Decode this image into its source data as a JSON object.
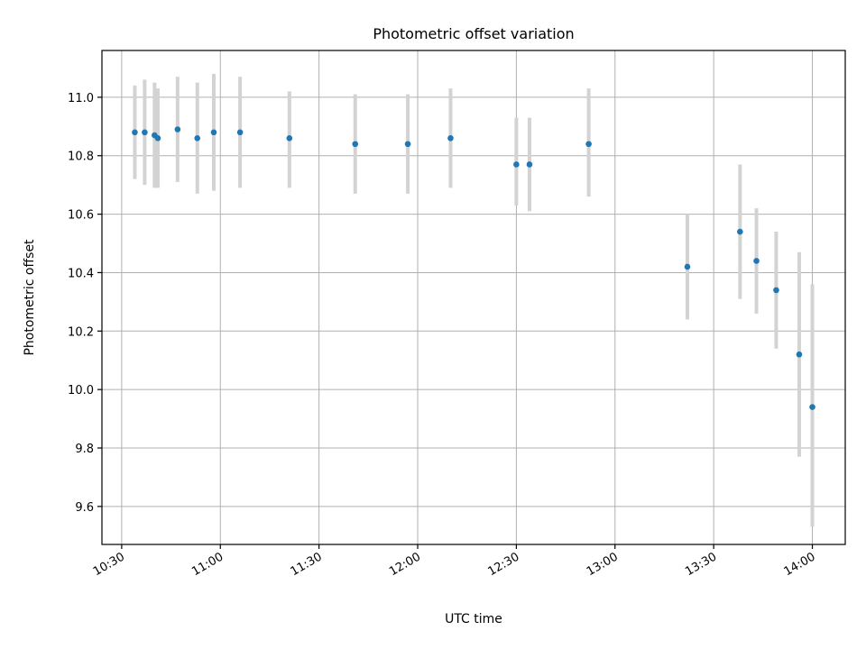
{
  "chart_data": {
    "type": "scatter",
    "title": "Photometric offset variation",
    "xlabel": "UTC time",
    "ylabel": "Photometric offset",
    "grid": true,
    "xlim": [
      "10:24",
      "14:10"
    ],
    "ylim": [
      9.47,
      11.16
    ],
    "x_ticks": [
      "10:30",
      "11:00",
      "11:30",
      "12:00",
      "12:30",
      "13:00",
      "13:30",
      "14:00"
    ],
    "y_ticks": [
      "9.6",
      "9.8",
      "10.0",
      "10.2",
      "10.4",
      "10.6",
      "10.8",
      "11.0"
    ],
    "colors": {
      "marker": "#1f77b4",
      "errorbar": "#d3d3d3",
      "grid": "#b0b0b0"
    },
    "series": [
      {
        "points": [
          {
            "x": "10:34",
            "y": 10.88,
            "ylow": 10.72,
            "yhigh": 11.04
          },
          {
            "x": "10:37",
            "y": 10.88,
            "ylow": 10.7,
            "yhigh": 11.06
          },
          {
            "x": "10:40",
            "y": 10.87,
            "ylow": 10.69,
            "yhigh": 11.05
          },
          {
            "x": "10:41",
            "y": 10.86,
            "ylow": 10.69,
            "yhigh": 11.03
          },
          {
            "x": "10:47",
            "y": 10.89,
            "ylow": 10.71,
            "yhigh": 11.07
          },
          {
            "x": "10:53",
            "y": 10.86,
            "ylow": 10.67,
            "yhigh": 11.05
          },
          {
            "x": "10:58",
            "y": 10.88,
            "ylow": 10.68,
            "yhigh": 11.08
          },
          {
            "x": "11:06",
            "y": 10.88,
            "ylow": 10.69,
            "yhigh": 11.07
          },
          {
            "x": "11:21",
            "y": 10.86,
            "ylow": 10.69,
            "yhigh": 11.02
          },
          {
            "x": "11:41",
            "y": 10.84,
            "ylow": 10.67,
            "yhigh": 11.01
          },
          {
            "x": "11:57",
            "y": 10.84,
            "ylow": 10.67,
            "yhigh": 11.01
          },
          {
            "x": "12:10",
            "y": 10.86,
            "ylow": 10.69,
            "yhigh": 11.03
          },
          {
            "x": "12:30",
            "y": 10.77,
            "ylow": 10.63,
            "yhigh": 10.93
          },
          {
            "x": "12:34",
            "y": 10.77,
            "ylow": 10.61,
            "yhigh": 10.93
          },
          {
            "x": "12:52",
            "y": 10.84,
            "ylow": 10.66,
            "yhigh": 11.03
          },
          {
            "x": "13:22",
            "y": 10.42,
            "ylow": 10.24,
            "yhigh": 10.6
          },
          {
            "x": "13:38",
            "y": 10.54,
            "ylow": 10.31,
            "yhigh": 10.77
          },
          {
            "x": "13:43",
            "y": 10.44,
            "ylow": 10.26,
            "yhigh": 10.62
          },
          {
            "x": "13:49",
            "y": 10.34,
            "ylow": 10.14,
            "yhigh": 10.54
          },
          {
            "x": "13:56",
            "y": 10.12,
            "ylow": 9.77,
            "yhigh": 10.47
          },
          {
            "x": "14:00",
            "y": 9.94,
            "ylow": 9.53,
            "yhigh": 10.36
          }
        ]
      }
    ]
  }
}
